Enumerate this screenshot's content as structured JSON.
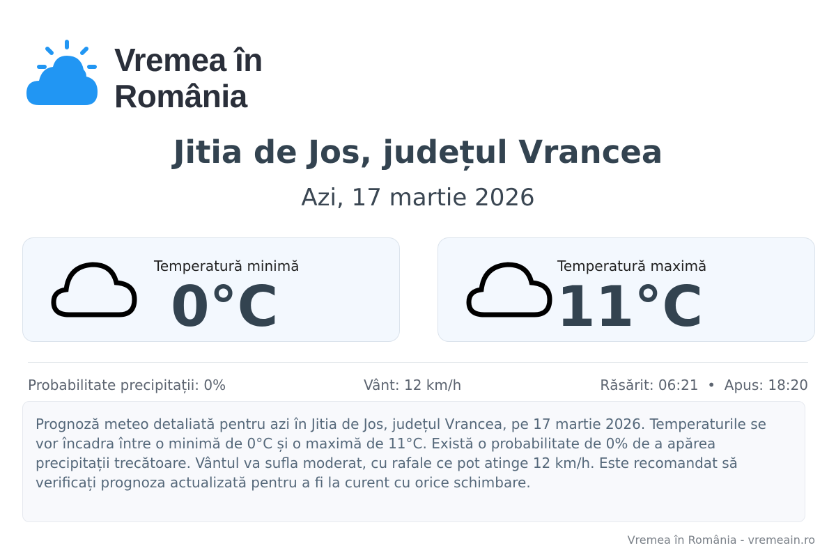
{
  "brand": {
    "name_line1": "Vremea în",
    "name_line2": "România",
    "accent": "#2196f3"
  },
  "header": {
    "title": "Jitia de Jos, județul Vrancea",
    "date": "Azi, 17 martie 2026"
  },
  "cards": [
    {
      "label": "Temperatură minimă",
      "value": "0°C",
      "icon": "cloud-icon"
    },
    {
      "label": "Temperatură maximă",
      "value": "11°C",
      "icon": "cloud-icon"
    }
  ],
  "stats": {
    "precip": "Probabilitate precipitații: 0%",
    "wind": "Vânt: 12 km/h",
    "sun": "Răsărit: 06:21  •  Apus: 18:20"
  },
  "description": "Prognoză meteo detaliată pentru azi în Jitia de Jos, județul Vrancea, pe 17 martie 2026. Temperaturile se vor încadra între o minimă de 0°C și o maximă de 11°C. Există o probabilitate de 0% de a apărea precipitații trecătoare. Vântul va sufla moderat, cu rafale ce pot atinge 12 km/h. Este recomandat să verificați prognoza actualizată pentru a fi la curent cu orice schimbare.",
  "footer": "Vremea în România - vremeain.ro"
}
